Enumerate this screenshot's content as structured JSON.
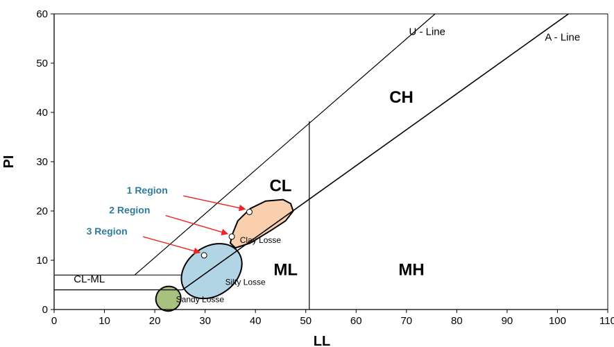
{
  "chart_data": {
    "type": "scatter",
    "xlabel": "LL",
    "ylabel": "PI",
    "xlim": [
      0,
      110
    ],
    "ylim": [
      0,
      60
    ],
    "x_ticks": [
      "0",
      "10",
      "20",
      "30",
      "40",
      "50",
      "60",
      "70",
      "80",
      "90",
      "100",
      "110"
    ],
    "y_ticks": [
      "0",
      "10",
      "20",
      "30",
      "40",
      "50",
      "60"
    ],
    "grid": false,
    "lines": {
      "u_line": {
        "label": "U - Line",
        "points": [
          [
            16,
            7
          ],
          [
            75.7,
            60
          ]
        ]
      },
      "a_line": {
        "label": "A - Line",
        "points": [
          [
            25.5,
            4
          ],
          [
            102.2,
            60
          ]
        ]
      },
      "ll50": {
        "points": [
          [
            50.7,
            0
          ],
          [
            50.7,
            38.2
          ]
        ]
      },
      "clml_upper": {
        "points": [
          [
            16,
            7
          ],
          [
            0,
            7
          ]
        ]
      },
      "clml_lower": {
        "points": [
          [
            25.5,
            4
          ],
          [
            0,
            4
          ]
        ]
      }
    },
    "zones": [
      {
        "label": "CH",
        "x": 69,
        "y": 42
      },
      {
        "label": "CL",
        "x": 45,
        "y": 24
      },
      {
        "label": "ML",
        "x": 46,
        "y": 7
      },
      {
        "label": "MH",
        "x": 71,
        "y": 7
      },
      {
        "label": "CL-ML",
        "x": 7,
        "y": 5.5
      }
    ],
    "regions": [
      {
        "label": "Clay Losse",
        "color": "#f9cfad",
        "points": [
          [
            35.5,
            15.5
          ],
          [
            36.5,
            18
          ],
          [
            39,
            20.5
          ],
          [
            42,
            22
          ],
          [
            45.5,
            22.3
          ],
          [
            47,
            21.5
          ],
          [
            47.5,
            20
          ],
          [
            46,
            18
          ],
          [
            43,
            16
          ],
          [
            39,
            13.5
          ],
          [
            36,
            12.5
          ],
          [
            35,
            13.5
          ]
        ],
        "label_x": 41,
        "label_y": 13.5
      },
      {
        "label": "Silty Losse",
        "color": "#b2d5e6",
        "ellipse": {
          "cx": 31.3,
          "cy": 7.8,
          "rx": 6.5,
          "ry": 3.2,
          "angle_deg": -35
        },
        "label_x": 38,
        "label_y": 5
      },
      {
        "label": "Sandy Losse",
        "color": "#a9c17e",
        "ellipse": {
          "cx": 22.7,
          "cy": 2.2,
          "rx": 2.5,
          "ry": 1.6,
          "angle_deg": -35
        },
        "label_x": 29,
        "label_y": 1.5
      }
    ],
    "annotations": [
      {
        "label": "1 Region",
        "text_x": 18.5,
        "text_y": 23.5,
        "point": [
          38.8,
          19.8
        ]
      },
      {
        "label": "2 Region",
        "text_x": 15,
        "text_y": 19.5,
        "point": [
          35.3,
          14.8
        ]
      },
      {
        "label": "3 Region",
        "text_x": 10.5,
        "text_y": 15.2,
        "point": [
          29.8,
          11
        ]
      }
    ],
    "colors": {
      "annotation_text": "#2e7c9b",
      "arrow": "#ee2222"
    }
  }
}
